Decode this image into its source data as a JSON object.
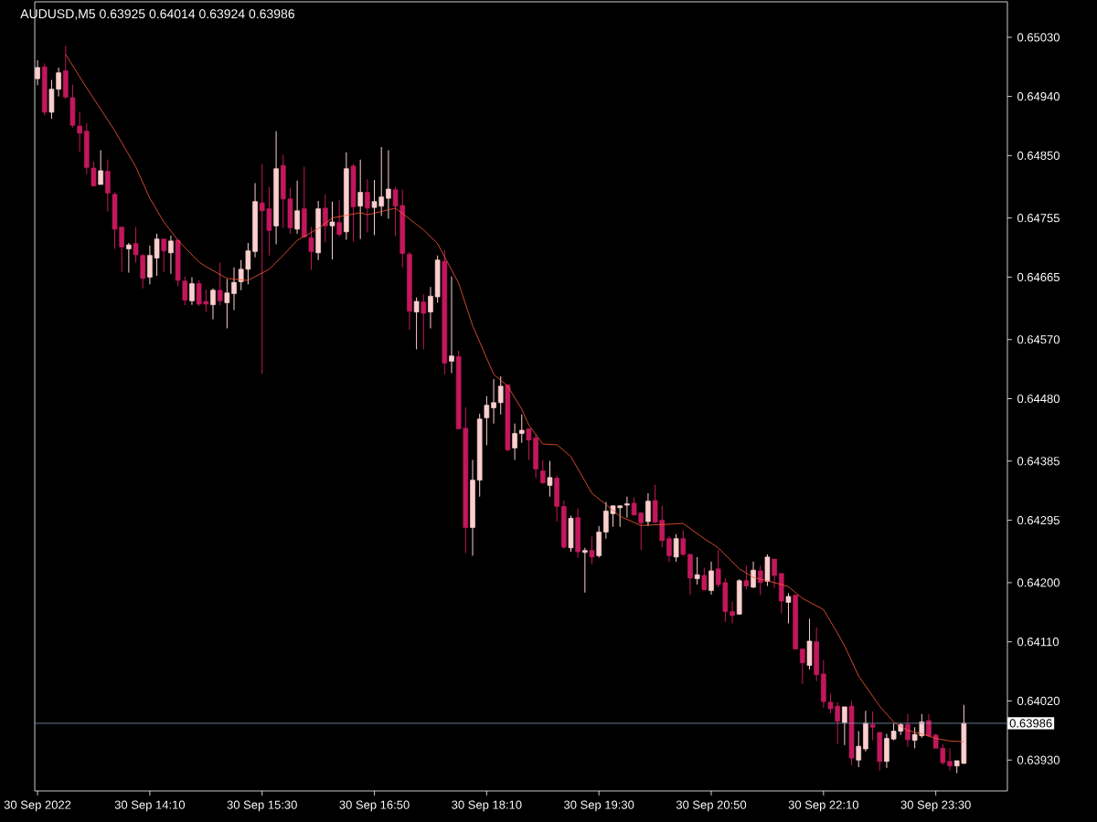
{
  "chart_data": {
    "type": "candlestick",
    "title": "AUDUSD,M5  0.63925 0.64014 0.63924 0.63986",
    "x": [
      "2022-09-30T12:50",
      "2022-09-30T12:55",
      "2022-09-30T13:00",
      "2022-09-30T13:05",
      "2022-09-30T13:10",
      "2022-09-30T13:15",
      "2022-09-30T13:20",
      "2022-09-30T13:25",
      "2022-09-30T13:30",
      "2022-09-30T13:35",
      "2022-09-30T13:40",
      "2022-09-30T13:45",
      "2022-09-30T13:50",
      "2022-09-30T13:55",
      "2022-09-30T14:00",
      "2022-09-30T14:05",
      "2022-09-30T14:10",
      "2022-09-30T14:15",
      "2022-09-30T14:20",
      "2022-09-30T14:25",
      "2022-09-30T14:30",
      "2022-09-30T14:35",
      "2022-09-30T14:40",
      "2022-09-30T14:45",
      "2022-09-30T14:50",
      "2022-09-30T14:55",
      "2022-09-30T15:00",
      "2022-09-30T15:05",
      "2022-09-30T15:10",
      "2022-09-30T15:15",
      "2022-09-30T15:20",
      "2022-09-30T15:25",
      "2022-09-30T15:30",
      "2022-09-30T15:35",
      "2022-09-30T15:40",
      "2022-09-30T15:45",
      "2022-09-30T15:50",
      "2022-09-30T15:55",
      "2022-09-30T16:00",
      "2022-09-30T16:05",
      "2022-09-30T16:10",
      "2022-09-30T16:15",
      "2022-09-30T16:20",
      "2022-09-30T16:25",
      "2022-09-30T16:30",
      "2022-09-30T16:35",
      "2022-09-30T16:40",
      "2022-09-30T16:45",
      "2022-09-30T16:50",
      "2022-09-30T16:55",
      "2022-09-30T17:00",
      "2022-09-30T17:05",
      "2022-09-30T17:10",
      "2022-09-30T17:15",
      "2022-09-30T17:20",
      "2022-09-30T17:25",
      "2022-09-30T17:30",
      "2022-09-30T17:35",
      "2022-09-30T17:40",
      "2022-09-30T17:45",
      "2022-09-30T17:50",
      "2022-09-30T17:55",
      "2022-09-30T18:00",
      "2022-09-30T18:05",
      "2022-09-30T18:10",
      "2022-09-30T18:15",
      "2022-09-30T18:20",
      "2022-09-30T18:25",
      "2022-09-30T18:30",
      "2022-09-30T18:35",
      "2022-09-30T18:40",
      "2022-09-30T18:45",
      "2022-09-30T18:50",
      "2022-09-30T18:55",
      "2022-09-30T19:00",
      "2022-09-30T19:05",
      "2022-09-30T19:10",
      "2022-09-30T19:15",
      "2022-09-30T19:20",
      "2022-09-30T19:25",
      "2022-09-30T19:30",
      "2022-09-30T19:35",
      "2022-09-30T19:40",
      "2022-09-30T19:45",
      "2022-09-30T19:50",
      "2022-09-30T19:55",
      "2022-09-30T20:00",
      "2022-09-30T20:05",
      "2022-09-30T20:10",
      "2022-09-30T20:15",
      "2022-09-30T20:20",
      "2022-09-30T20:25",
      "2022-09-30T20:30",
      "2022-09-30T20:35",
      "2022-09-30T20:40",
      "2022-09-30T20:45",
      "2022-09-30T20:50",
      "2022-09-30T20:55",
      "2022-09-30T21:00",
      "2022-09-30T21:05",
      "2022-09-30T21:10",
      "2022-09-30T21:15",
      "2022-09-30T21:20",
      "2022-09-30T21:25",
      "2022-09-30T21:30",
      "2022-09-30T21:35",
      "2022-09-30T21:40",
      "2022-09-30T21:45",
      "2022-09-30T21:50",
      "2022-09-30T21:55",
      "2022-09-30T22:00",
      "2022-09-30T22:05",
      "2022-09-30T22:10",
      "2022-09-30T22:15",
      "2022-09-30T22:20",
      "2022-09-30T22:25",
      "2022-09-30T22:30",
      "2022-09-30T22:35",
      "2022-09-30T22:40",
      "2022-09-30T22:45",
      "2022-09-30T22:50",
      "2022-09-30T22:55",
      "2022-09-30T23:00",
      "2022-09-30T23:05",
      "2022-09-30T23:10",
      "2022-09-30T23:15",
      "2022-09-30T23:20",
      "2022-09-30T23:25",
      "2022-09-30T23:30",
      "2022-09-30T23:35",
      "2022-09-30T23:40",
      "2022-09-30T23:45",
      "2022-09-30T23:50"
    ],
    "ohlc": [
      [
        0.64967,
        0.64995,
        0.64957,
        0.64984
      ],
      [
        0.64985,
        0.6499,
        0.64911,
        0.64916
      ],
      [
        0.64916,
        0.64965,
        0.64906,
        0.64951
      ],
      [
        0.64951,
        0.64984,
        0.6494,
        0.64976
      ],
      [
        0.64979,
        0.65017,
        0.64936,
        0.64939
      ],
      [
        0.64938,
        0.64958,
        0.64893,
        0.64896
      ],
      [
        0.64895,
        0.64917,
        0.64856,
        0.64884
      ],
      [
        0.64887,
        0.64899,
        0.64822,
        0.64832
      ],
      [
        0.64831,
        0.64841,
        0.64803,
        0.64804
      ],
      [
        0.64806,
        0.64858,
        0.64806,
        0.64827
      ],
      [
        0.64826,
        0.64844,
        0.64765,
        0.64793
      ],
      [
        0.64791,
        0.64794,
        0.64708,
        0.64738
      ],
      [
        0.64741,
        0.64741,
        0.64673,
        0.64711
      ],
      [
        0.64708,
        0.64717,
        0.64672,
        0.64714
      ],
      [
        0.64716,
        0.64741,
        0.64687,
        0.64699
      ],
      [
        0.64698,
        0.647,
        0.64648,
        0.64663
      ],
      [
        0.64665,
        0.64713,
        0.64654,
        0.64698
      ],
      [
        0.64694,
        0.64731,
        0.64667,
        0.64723
      ],
      [
        0.64723,
        0.64723,
        0.64673,
        0.64705
      ],
      [
        0.64702,
        0.64728,
        0.6467,
        0.6472
      ],
      [
        0.64721,
        0.64723,
        0.64651,
        0.6466
      ],
      [
        0.64659,
        0.64666,
        0.64622,
        0.6463
      ],
      [
        0.64629,
        0.64665,
        0.64623,
        0.64655
      ],
      [
        0.64655,
        0.6466,
        0.64621,
        0.64624
      ],
      [
        0.64628,
        0.64646,
        0.64612,
        0.64624
      ],
      [
        0.64623,
        0.64648,
        0.64601,
        0.64645
      ],
      [
        0.64645,
        0.64687,
        0.64622,
        0.64629
      ],
      [
        0.64626,
        0.64662,
        0.64587,
        0.64641
      ],
      [
        0.6464,
        0.6468,
        0.64615,
        0.64657
      ],
      [
        0.64658,
        0.64691,
        0.64645,
        0.64677
      ],
      [
        0.64677,
        0.64717,
        0.64654,
        0.64705
      ],
      [
        0.64704,
        0.64808,
        0.64695,
        0.6478
      ],
      [
        0.64778,
        0.64837,
        0.64518,
        0.64766
      ],
      [
        0.64769,
        0.64802,
        0.64698,
        0.64736
      ],
      [
        0.64743,
        0.64887,
        0.64715,
        0.6483
      ],
      [
        0.64835,
        0.64851,
        0.6474,
        0.64784
      ],
      [
        0.64784,
        0.64801,
        0.64731,
        0.6474
      ],
      [
        0.64738,
        0.64812,
        0.64731,
        0.64766
      ],
      [
        0.64769,
        0.64833,
        0.64726,
        0.64726
      ],
      [
        0.64725,
        0.64741,
        0.64676,
        0.64704
      ],
      [
        0.64702,
        0.64781,
        0.64691,
        0.64769
      ],
      [
        0.6477,
        0.64791,
        0.64718,
        0.64743
      ],
      [
        0.64743,
        0.6478,
        0.64692,
        0.64749
      ],
      [
        0.64748,
        0.64782,
        0.64727,
        0.6473
      ],
      [
        0.64734,
        0.64855,
        0.64722,
        0.6483
      ],
      [
        0.64834,
        0.64837,
        0.64719,
        0.64772
      ],
      [
        0.64773,
        0.64844,
        0.64723,
        0.64794
      ],
      [
        0.64794,
        0.64814,
        0.64733,
        0.6477
      ],
      [
        0.64771,
        0.64813,
        0.64729,
        0.6478
      ],
      [
        0.64773,
        0.64863,
        0.64758,
        0.64787
      ],
      [
        0.64785,
        0.64858,
        0.64754,
        0.64799
      ],
      [
        0.64798,
        0.64802,
        0.64727,
        0.64773
      ],
      [
        0.64774,
        0.64798,
        0.6468,
        0.64701
      ],
      [
        0.647,
        0.64703,
        0.64585,
        0.64613
      ],
      [
        0.64612,
        0.64634,
        0.64555,
        0.64628
      ],
      [
        0.64627,
        0.64639,
        0.64555,
        0.6461
      ],
      [
        0.64612,
        0.6465,
        0.64587,
        0.64636
      ],
      [
        0.64635,
        0.64698,
        0.64626,
        0.64691
      ],
      [
        0.64689,
        0.64706,
        0.64517,
        0.64534
      ],
      [
        0.64537,
        0.64666,
        0.64519,
        0.64545
      ],
      [
        0.64544,
        0.64553,
        0.64434,
        0.64434
      ],
      [
        0.64435,
        0.64467,
        0.64245,
        0.64284
      ],
      [
        0.64284,
        0.64387,
        0.64241,
        0.64356
      ],
      [
        0.64356,
        0.64457,
        0.64331,
        0.64449
      ],
      [
        0.64451,
        0.64484,
        0.64409,
        0.6447
      ],
      [
        0.64466,
        0.6451,
        0.64442,
        0.64474
      ],
      [
        0.64474,
        0.64514,
        0.64456,
        0.64499
      ],
      [
        0.64501,
        0.64501,
        0.644,
        0.64402
      ],
      [
        0.64405,
        0.64442,
        0.64387,
        0.64427
      ],
      [
        0.64427,
        0.64456,
        0.64413,
        0.64432
      ],
      [
        0.64434,
        0.64435,
        0.64387,
        0.64417
      ],
      [
        0.6442,
        0.64425,
        0.64359,
        0.64373
      ],
      [
        0.6437,
        0.64387,
        0.6435,
        0.64352
      ],
      [
        0.64348,
        0.64385,
        0.64331,
        0.6436
      ],
      [
        0.64359,
        0.64363,
        0.64293,
        0.64316
      ],
      [
        0.64316,
        0.64325,
        0.64252,
        0.64254
      ],
      [
        0.64253,
        0.64302,
        0.64247,
        0.64298
      ],
      [
        0.64299,
        0.64313,
        0.64238,
        0.64247
      ],
      [
        0.64246,
        0.64253,
        0.64185,
        0.64249
      ],
      [
        0.64249,
        0.6427,
        0.64228,
        0.64239
      ],
      [
        0.64241,
        0.64286,
        0.64238,
        0.64277
      ],
      [
        0.64277,
        0.64323,
        0.64267,
        0.64309
      ],
      [
        0.64305,
        0.64317,
        0.64285,
        0.64317
      ],
      [
        0.64314,
        0.64317,
        0.64285,
        0.64317
      ],
      [
        0.64318,
        0.64331,
        0.64299,
        0.6432
      ],
      [
        0.64321,
        0.6433,
        0.64302,
        0.64303
      ],
      [
        0.64306,
        0.64307,
        0.6425,
        0.64291
      ],
      [
        0.64293,
        0.64336,
        0.64286,
        0.64324
      ],
      [
        0.64325,
        0.64349,
        0.64291,
        0.64292
      ],
      [
        0.64295,
        0.64317,
        0.64254,
        0.64264
      ],
      [
        0.64267,
        0.64271,
        0.64232,
        0.64241
      ],
      [
        0.64239,
        0.64274,
        0.64232,
        0.64267
      ],
      [
        0.64267,
        0.6428,
        0.64241,
        0.64243
      ],
      [
        0.64243,
        0.64244,
        0.64181,
        0.64207
      ],
      [
        0.64206,
        0.64239,
        0.64197,
        0.64212
      ],
      [
        0.64211,
        0.64223,
        0.64189,
        0.64189
      ],
      [
        0.64188,
        0.64232,
        0.64182,
        0.64218
      ],
      [
        0.64221,
        0.6425,
        0.64193,
        0.64197
      ],
      [
        0.642,
        0.64207,
        0.6414,
        0.64156
      ],
      [
        0.64156,
        0.64171,
        0.64138,
        0.6415
      ],
      [
        0.64152,
        0.64205,
        0.64152,
        0.64203
      ],
      [
        0.64203,
        0.64226,
        0.6419,
        0.64195
      ],
      [
        0.64193,
        0.64232,
        0.64192,
        0.64219
      ],
      [
        0.64218,
        0.64226,
        0.64181,
        0.642
      ],
      [
        0.64202,
        0.64243,
        0.64195,
        0.64239
      ],
      [
        0.64236,
        0.64236,
        0.64192,
        0.64211
      ],
      [
        0.64214,
        0.64214,
        0.64153,
        0.64172
      ],
      [
        0.6417,
        0.64184,
        0.64138,
        0.64179
      ],
      [
        0.64181,
        0.64181,
        0.64099,
        0.64099
      ],
      [
        0.64099,
        0.64099,
        0.64046,
        0.64078
      ],
      [
        0.64074,
        0.64145,
        0.64068,
        0.64111
      ],
      [
        0.6411,
        0.64132,
        0.6405,
        0.6406
      ],
      [
        0.64061,
        0.64082,
        0.6401,
        0.64019
      ],
      [
        0.64018,
        0.64031,
        0.64001,
        0.64008
      ],
      [
        0.64012,
        0.64018,
        0.63955,
        0.63989
      ],
      [
        0.63987,
        0.64011,
        0.63953,
        0.64011
      ],
      [
        0.64012,
        0.6402,
        0.63922,
        0.63933
      ],
      [
        0.6393,
        0.63974,
        0.63919,
        0.63951
      ],
      [
        0.63947,
        0.64005,
        0.63943,
        0.63986
      ],
      [
        0.63984,
        0.64004,
        0.6396,
        0.6398
      ],
      [
        0.63972,
        0.63972,
        0.63914,
        0.63928
      ],
      [
        0.63928,
        0.6397,
        0.63918,
        0.63963
      ],
      [
        0.63962,
        0.63986,
        0.6396,
        0.63974
      ],
      [
        0.63974,
        0.63986,
        0.63968,
        0.63984
      ],
      [
        0.63984,
        0.64,
        0.6395,
        0.63961
      ],
      [
        0.6396,
        0.6398,
        0.63948,
        0.63969
      ],
      [
        0.63967,
        0.64,
        0.63964,
        0.63988
      ],
      [
        0.6399,
        0.64,
        0.63965,
        0.63967
      ],
      [
        0.63968,
        0.6397,
        0.63948,
        0.63948
      ],
      [
        0.63948,
        0.63954,
        0.63923,
        0.63926
      ],
      [
        0.63928,
        0.63948,
        0.63914,
        0.63921
      ],
      [
        0.63921,
        0.63929,
        0.6391,
        0.63929
      ],
      [
        0.63925,
        0.64014,
        0.63924,
        0.63986
      ]
    ],
    "colors": [
      "#fccfcf",
      "#c2185b",
      "#fccfcf",
      "#fccfcf",
      "#c2185b",
      "#c2185b",
      "#c2185b",
      "#c2185b",
      "#c2185b",
      "#fccfcf",
      "#c2185b",
      "#c2185b",
      "#c2185b",
      "#fccfcf",
      "#c2185b",
      "#c2185b",
      "#fccfcf",
      "#fccfcf",
      "#c2185b",
      "#fccfcf",
      "#c2185b",
      "#c2185b",
      "#fccfcf",
      "#c2185b",
      "#c2185b",
      "#fccfcf",
      "#c2185b",
      "#fccfcf",
      "#fccfcf",
      "#fccfcf",
      "#fccfcf",
      "#fccfcf",
      "#c2185b",
      "#c2185b",
      "#fccfcf",
      "#c2185b",
      "#c2185b",
      "#fccfcf",
      "#c2185b",
      "#c2185b",
      "#fccfcf",
      "#c2185b",
      "#fccfcf",
      "#c2185b",
      "#fccfcf",
      "#c2185b",
      "#fccfcf",
      "#c2185b",
      "#fccfcf",
      "#fccfcf",
      "#fccfcf",
      "#c2185b",
      "#c2185b",
      "#c2185b",
      "#fccfcf",
      "#c2185b",
      "#fccfcf",
      "#fccfcf",
      "#c2185b",
      "#fccfcf",
      "#c2185b",
      "#c2185b",
      "#fccfcf",
      "#fccfcf",
      "#fccfcf",
      "#fccfcf",
      "#fccfcf",
      "#c2185b",
      "#fccfcf",
      "#fccfcf",
      "#c2185b",
      "#c2185b",
      "#c2185b",
      "#fccfcf",
      "#c2185b",
      "#c2185b",
      "#fccfcf",
      "#c2185b",
      "#fccfcf",
      "#c2185b",
      "#fccfcf",
      "#fccfcf",
      "#fccfcf",
      "#fccfcf",
      "#fccfcf",
      "#c2185b",
      "#c2185b",
      "#fccfcf",
      "#c2185b",
      "#c2185b",
      "#c2185b",
      "#fccfcf",
      "#c2185b",
      "#c2185b",
      "#fccfcf",
      "#c2185b",
      "#fccfcf",
      "#c2185b",
      "#c2185b",
      "#c2185b",
      "#fccfcf",
      "#c2185b",
      "#fccfcf",
      "#c2185b",
      "#fccfcf",
      "#c2185b",
      "#c2185b",
      "#fccfcf",
      "#c2185b",
      "#c2185b",
      "#fccfcf",
      "#c2185b",
      "#c2185b",
      "#c2185b",
      "#c2185b",
      "#fccfcf",
      "#c2185b",
      "#fccfcf",
      "#fccfcf",
      "#c2185b",
      "#c2185b",
      "#fccfcf",
      "#fccfcf",
      "#fccfcf",
      "#c2185b",
      "#fccfcf",
      "#fccfcf",
      "#c2185b",
      "#c2185b",
      "#c2185b",
      "#c2185b",
      "#fccfcf",
      "#fccfcf"
    ],
    "series": [
      {
        "type": "line",
        "color": "#ff5a36",
        "x": [
          "2022-09-30T13:10",
          "2022-09-30T13:25",
          "2022-09-30T13:45",
          "2022-09-30T14:00",
          "2022-09-30T14:10",
          "2022-09-30T14:20",
          "2022-09-30T14:30",
          "2022-09-30T14:45",
          "2022-09-30T14:50",
          "2022-09-30T15:05",
          "2022-09-30T15:20",
          "2022-09-30T15:35",
          "2022-09-30T15:45",
          "2022-09-30T15:55",
          "2022-09-30T16:10",
          "2022-09-30T16:20",
          "2022-09-30T16:30",
          "2022-09-30T16:40",
          "2022-09-30T16:45",
          "2022-09-30T17:05",
          "2022-09-30T17:25",
          "2022-09-30T17:35",
          "2022-09-30T17:50",
          "2022-09-30T18:00",
          "2022-09-30T18:15",
          "2022-09-30T18:25",
          "2022-09-30T18:35",
          "2022-09-30T18:40",
          "2022-09-30T18:50",
          "2022-09-30T19:00",
          "2022-09-30T19:10",
          "2022-09-30T19:25",
          "2022-09-30T19:35",
          "2022-09-30T19:45",
          "2022-09-30T20:00",
          "2022-09-30T20:30",
          "2022-09-30T20:45",
          "2022-09-30T20:55",
          "2022-09-30T21:10",
          "2022-09-30T21:20",
          "2022-09-30T21:35",
          "2022-09-30T21:45",
          "2022-09-30T21:55",
          "2022-09-30T22:10",
          "2022-09-30T22:20",
          "2022-09-30T22:25",
          "2022-09-30T22:35",
          "2022-09-30T22:50",
          "2022-09-30T23:00",
          "2022-09-30T23:10",
          "2022-09-30T23:20",
          "2022-09-30T23:30",
          "2022-09-30T23:40",
          "2022-09-30T23:50"
        ],
        "values": [
          0.65004,
          0.64953,
          0.64888,
          0.64833,
          0.64785,
          0.64749,
          0.64721,
          0.64688,
          0.64681,
          0.64663,
          0.6466,
          0.64677,
          0.64698,
          0.64721,
          0.64739,
          0.64755,
          0.64759,
          0.64763,
          0.6476,
          0.6477,
          0.64737,
          0.64716,
          0.64656,
          0.64591,
          0.64517,
          0.64499,
          0.64464,
          0.6444,
          0.64411,
          0.6441,
          0.64392,
          0.64336,
          0.64319,
          0.64301,
          0.64287,
          0.6429,
          0.64267,
          0.64253,
          0.64221,
          0.64208,
          0.642,
          0.64194,
          0.64176,
          0.64159,
          0.64123,
          0.64104,
          0.64058,
          0.64012,
          0.63988,
          0.63975,
          0.6397,
          0.63963,
          0.63959,
          0.63958
        ]
      }
    ],
    "ref_lines": [
      {
        "axis": "y",
        "value": 0.63986,
        "label": "0.63986",
        "color": "#8595ad"
      }
    ],
    "xlim": [
      "2022-09-30T12:48",
      "2022-10-01T00:21"
    ],
    "ylim": [
      0.63883,
      0.65084
    ],
    "xticks": [
      {
        "value": "2022-09-30T12:50",
        "label": "30 Sep 2022"
      },
      {
        "value": "2022-09-30T14:10",
        "label": "30 Sep 14:10"
      },
      {
        "value": "2022-09-30T15:30",
        "label": "30 Sep 15:30"
      },
      {
        "value": "2022-09-30T16:50",
        "label": "30 Sep 16:50"
      },
      {
        "value": "2022-09-30T18:10",
        "label": "30 Sep 18:10"
      },
      {
        "value": "2022-09-30T19:30",
        "label": "30 Sep 19:30"
      },
      {
        "value": "2022-09-30T20:50",
        "label": "30 Sep 20:50"
      },
      {
        "value": "2022-09-30T22:10",
        "label": "30 Sep 22:10"
      },
      {
        "value": "2022-09-30T23:30",
        "label": "30 Sep 23:30"
      }
    ],
    "yticks": [
      {
        "value": 0.6393,
        "label": "0.63930"
      },
      {
        "value": 0.6402,
        "label": "0.64020"
      },
      {
        "value": 0.6411,
        "label": "0.64110"
      },
      {
        "value": 0.642,
        "label": "0.64200"
      },
      {
        "value": 0.64295,
        "label": "0.64295"
      },
      {
        "value": 0.64385,
        "label": "0.64385"
      },
      {
        "value": 0.6448,
        "label": "0.64480"
      },
      {
        "value": 0.6457,
        "label": "0.64570"
      },
      {
        "value": 0.64665,
        "label": "0.64665"
      },
      {
        "value": 0.64755,
        "label": "0.64755"
      },
      {
        "value": 0.6485,
        "label": "0.64850"
      },
      {
        "value": 0.6494,
        "label": "0.64940"
      },
      {
        "value": 0.6503,
        "label": "0.65030"
      }
    ]
  }
}
